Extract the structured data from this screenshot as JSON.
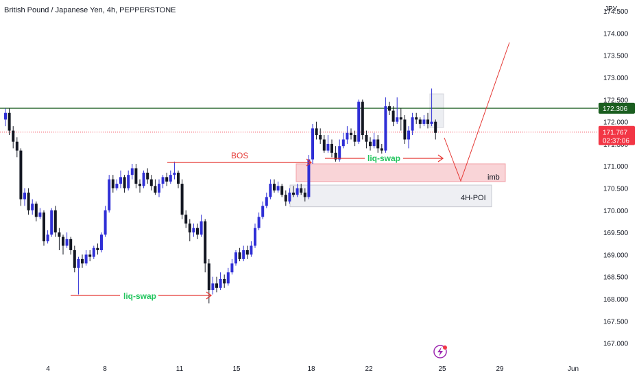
{
  "title": "British Pound / Japanese Yen, 4h, PEPPERSTONE",
  "colors": {
    "up": "#2f2fd6",
    "down": "#131722",
    "level": "#1b5e20",
    "last": "#f23645",
    "annotation": "#e53935",
    "swap_text": "#22c55e"
  },
  "price_scale": {
    "currency": "JPY",
    "ticks": [
      "174.500",
      "174.000",
      "173.500",
      "173.000",
      "172.500",
      "172.000",
      "171.500",
      "171.000",
      "170.500",
      "170.000",
      "169.500",
      "169.000",
      "168.500",
      "168.000",
      "167.500",
      "167.000"
    ]
  },
  "time_scale": {
    "ticks": [
      "4",
      "8",
      "11",
      "15",
      "18",
      "22",
      "25",
      "29",
      "Jun"
    ]
  },
  "labels": {
    "level_price": "172.306",
    "last_price": "171.767",
    "countdown": "02:37:06",
    "bos": "BOS",
    "liq_swap_1": "liq-swap",
    "liq_swap_2": "liq-swap",
    "imb": "imb",
    "poi": "4H-POI"
  },
  "chart_data": {
    "type": "candlestick",
    "symbol": "British Pound / Japanese Yen",
    "interval": "4h",
    "exchange": "PEPPERSTONE",
    "ylim": [
      166.7,
      174.75
    ],
    "y_unit": "JPY",
    "x_tick_labels": [
      "4",
      "8",
      "11",
      "15",
      "18",
      "22",
      "25",
      "29",
      "Jun"
    ],
    "levels": {
      "horizontal": 172.306,
      "last": 171.767
    },
    "zones": {
      "imb": {
        "low": 170.65,
        "high": 171.05
      },
      "poi": {
        "low": 170.08,
        "high": 170.57
      }
    },
    "candles": [
      [
        172.05,
        172.2,
        172.3,
        171.9
      ],
      [
        172.2,
        171.8,
        172.3,
        171.7
      ],
      [
        171.8,
        171.55,
        171.9,
        171.4
      ],
      [
        171.55,
        171.35,
        171.65,
        171.2
      ],
      [
        171.35,
        170.25,
        171.4,
        170.1
      ],
      [
        170.25,
        170.4,
        170.5,
        170.1
      ],
      [
        170.4,
        170.0,
        170.5,
        169.9
      ],
      [
        170.0,
        170.15,
        170.25,
        169.9
      ],
      [
        170.15,
        169.85,
        170.2,
        169.75
      ],
      [
        169.85,
        169.95,
        170.05,
        169.8
      ],
      [
        169.95,
        169.3,
        170.0,
        169.2
      ],
      [
        169.3,
        169.45,
        169.55,
        169.25
      ],
      [
        169.45,
        170.0,
        170.05,
        169.4
      ],
      [
        170.0,
        169.5,
        170.1,
        169.4
      ],
      [
        169.5,
        169.4,
        169.6,
        169.1
      ],
      [
        169.4,
        169.2,
        169.45,
        169.0
      ],
      [
        169.2,
        169.35,
        169.5,
        169.15
      ],
      [
        169.35,
        169.1,
        169.4,
        169.0
      ],
      [
        169.1,
        168.7,
        169.2,
        168.6
      ],
      [
        168.7,
        168.9,
        168.95,
        168.1
      ],
      [
        168.9,
        168.8,
        169.0,
        168.7
      ],
      [
        168.8,
        169.0,
        169.1,
        168.75
      ],
      [
        169.0,
        168.95,
        169.1,
        168.85
      ],
      [
        168.95,
        169.15,
        169.2,
        168.9
      ],
      [
        169.15,
        169.1,
        169.25,
        169.0
      ],
      [
        169.1,
        169.45,
        169.5,
        169.05
      ],
      [
        169.45,
        170.0,
        170.1,
        169.4
      ],
      [
        170.0,
        170.7,
        170.8,
        169.95
      ],
      [
        170.7,
        170.5,
        170.8,
        170.4
      ],
      [
        170.5,
        170.6,
        170.7,
        170.45
      ],
      [
        170.6,
        170.75,
        170.9,
        170.5
      ],
      [
        170.75,
        170.5,
        170.8,
        170.4
      ],
      [
        170.5,
        170.8,
        170.9,
        170.45
      ],
      [
        170.8,
        170.95,
        171.05,
        170.7
      ],
      [
        170.95,
        170.6,
        171.05,
        170.5
      ],
      [
        170.6,
        170.55,
        170.7,
        170.4
      ],
      [
        170.55,
        170.85,
        170.9,
        170.5
      ],
      [
        170.85,
        170.7,
        170.95,
        170.6
      ],
      [
        170.7,
        170.55,
        170.8,
        170.45
      ],
      [
        170.55,
        170.4,
        170.7,
        170.35
      ],
      [
        170.4,
        170.6,
        170.7,
        170.3
      ],
      [
        170.6,
        170.75,
        170.8,
        170.5
      ],
      [
        170.75,
        170.65,
        170.85,
        170.55
      ],
      [
        170.65,
        170.8,
        170.9,
        170.6
      ],
      [
        170.8,
        170.85,
        171.1,
        170.7
      ],
      [
        170.85,
        170.6,
        170.9,
        170.5
      ],
      [
        170.6,
        169.9,
        170.7,
        169.8
      ],
      [
        169.9,
        169.7,
        170.0,
        169.6
      ],
      [
        169.7,
        169.5,
        169.8,
        169.3
      ],
      [
        169.5,
        169.6,
        169.7,
        169.4
      ],
      [
        169.6,
        169.45,
        169.7,
        169.35
      ],
      [
        169.45,
        169.75,
        169.9,
        169.4
      ],
      [
        169.75,
        168.8,
        169.8,
        168.6
      ],
      [
        168.8,
        168.2,
        168.9,
        167.9
      ],
      [
        168.2,
        168.35,
        168.5,
        168.1
      ],
      [
        168.35,
        168.25,
        168.5,
        168.15
      ],
      [
        168.25,
        168.45,
        168.6,
        168.2
      ],
      [
        168.45,
        168.35,
        168.55,
        168.25
      ],
      [
        168.35,
        168.6,
        168.7,
        168.3
      ],
      [
        168.6,
        168.8,
        168.9,
        168.55
      ],
      [
        168.8,
        169.05,
        169.1,
        168.75
      ],
      [
        169.05,
        168.9,
        169.15,
        168.85
      ],
      [
        168.9,
        169.1,
        169.2,
        168.85
      ],
      [
        169.1,
        169.0,
        169.2,
        168.9
      ],
      [
        169.0,
        169.2,
        169.3,
        168.95
      ],
      [
        169.2,
        169.6,
        169.7,
        169.15
      ],
      [
        169.6,
        169.85,
        169.95,
        169.55
      ],
      [
        169.85,
        170.1,
        170.2,
        169.8
      ],
      [
        170.1,
        170.3,
        170.4,
        170.05
      ],
      [
        170.3,
        170.6,
        170.7,
        170.25
      ],
      [
        170.6,
        170.45,
        170.7,
        170.4
      ],
      [
        170.45,
        170.55,
        170.65,
        170.4
      ],
      [
        170.55,
        170.35,
        170.6,
        170.3
      ],
      [
        170.35,
        170.2,
        170.45,
        170.1
      ],
      [
        170.2,
        170.4,
        170.5,
        170.15
      ],
      [
        170.4,
        170.35,
        170.55,
        170.3
      ],
      [
        170.35,
        170.5,
        170.6,
        170.3
      ],
      [
        170.5,
        170.4,
        170.6,
        170.35
      ],
      [
        170.4,
        170.3,
        170.5,
        170.2
      ],
      [
        170.3,
        171.15,
        171.25,
        170.25
      ],
      [
        171.15,
        171.85,
        171.95,
        171.05
      ],
      [
        171.85,
        171.7,
        172.0,
        171.6
      ],
      [
        171.7,
        171.6,
        171.85,
        171.5
      ],
      [
        171.6,
        171.35,
        171.7,
        171.3
      ],
      [
        171.35,
        171.5,
        171.7,
        171.3
      ],
      [
        171.5,
        171.3,
        171.6,
        171.2
      ],
      [
        171.3,
        171.15,
        171.45,
        171.1
      ],
      [
        171.15,
        171.45,
        171.6,
        171.1
      ],
      [
        171.45,
        171.6,
        171.75,
        171.4
      ],
      [
        171.6,
        171.75,
        171.9,
        171.5
      ],
      [
        171.75,
        171.7,
        171.85,
        171.6
      ],
      [
        171.7,
        171.55,
        171.8,
        171.45
      ],
      [
        171.55,
        172.45,
        172.5,
        171.5
      ],
      [
        172.45,
        171.7,
        172.5,
        171.6
      ],
      [
        171.7,
        171.55,
        171.8,
        171.4
      ],
      [
        171.55,
        171.45,
        171.65,
        171.35
      ],
      [
        171.45,
        171.6,
        171.75,
        171.4
      ],
      [
        171.6,
        171.4,
        171.7,
        171.3
      ],
      [
        171.4,
        171.35,
        171.5,
        171.25
      ],
      [
        171.35,
        172.35,
        172.55,
        171.3
      ],
      [
        172.35,
        172.25,
        172.45,
        172.15
      ],
      [
        172.25,
        172.0,
        172.35,
        171.9
      ],
      [
        172.0,
        172.1,
        172.55,
        171.95
      ],
      [
        172.1,
        172.05,
        172.3,
        171.8
      ],
      [
        172.05,
        171.6,
        172.15,
        171.5
      ],
      [
        171.6,
        171.8,
        171.9,
        171.4
      ],
      [
        171.8,
        172.1,
        172.2,
        171.7
      ],
      [
        172.1,
        172.05,
        172.2,
        171.95
      ],
      [
        172.05,
        171.95,
        172.1,
        171.85
      ],
      [
        171.95,
        172.05,
        172.15,
        171.9
      ],
      [
        172.05,
        171.95,
        172.2,
        171.85
      ],
      [
        171.95,
        172.0,
        172.75,
        171.9
      ],
      [
        172.0,
        171.75,
        172.05,
        171.6
      ]
    ]
  }
}
